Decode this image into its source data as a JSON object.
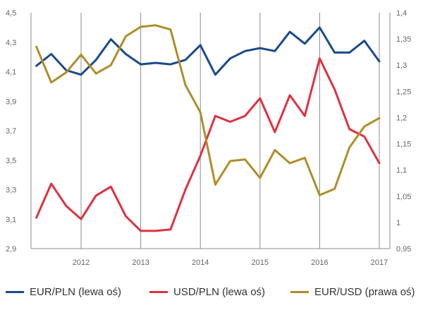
{
  "chart_data": {
    "type": "line",
    "x_ticks": [
      "2012",
      "2013",
      "2014",
      "2015",
      "2016",
      "2017"
    ],
    "y_left": {
      "ticks": [
        "4,5",
        "4,3",
        "4,1",
        "3,9",
        "3,7",
        "3,5",
        "3,3",
        "3,1",
        "2,9"
      ],
      "min": 2.9,
      "max": 4.5
    },
    "y_right": {
      "ticks": [
        "1,4",
        "1,35",
        "1,3",
        "1,25",
        "1,2",
        "1,15",
        "1,1",
        "1,05",
        "1",
        "0,95"
      ],
      "min": 0.95,
      "max": 1.4
    },
    "x": [
      2011.25,
      2011.5,
      2011.75,
      2012.0,
      2012.25,
      2012.5,
      2012.75,
      2013.0,
      2013.25,
      2013.5,
      2013.75,
      2014.0,
      2014.25,
      2014.5,
      2014.75,
      2015.0,
      2015.25,
      2015.5,
      2015.75,
      2016.0,
      2016.25,
      2016.5,
      2016.75,
      2017.0
    ],
    "series": [
      {
        "name": "EUR/PLN (lewa oś)",
        "axis": "left",
        "color": "#1a4a8a",
        "values": [
          4.14,
          4.22,
          4.11,
          4.08,
          4.18,
          4.32,
          4.22,
          4.15,
          4.16,
          4.15,
          4.18,
          4.28,
          4.08,
          4.19,
          4.24,
          4.26,
          4.24,
          4.37,
          4.29,
          4.4,
          4.23,
          4.23,
          4.31,
          4.17
        ]
      },
      {
        "name": "USD/PLN (lewa oś)",
        "axis": "left",
        "color": "#e03040",
        "values": [
          3.11,
          3.34,
          3.19,
          3.1,
          3.26,
          3.32,
          3.12,
          3.02,
          3.02,
          3.03,
          3.3,
          3.53,
          3.8,
          3.76,
          3.8,
          3.92,
          3.69,
          3.94,
          3.8,
          4.19,
          3.98,
          3.71,
          3.66,
          3.48
        ]
      },
      {
        "name": "EUR/USD (prawa oś)",
        "axis": "right",
        "color": "#b08d2a",
        "values": [
          1.335,
          1.267,
          1.286,
          1.32,
          1.284,
          1.3,
          1.355,
          1.373,
          1.376,
          1.368,
          1.262,
          1.21,
          1.072,
          1.117,
          1.12,
          1.085,
          1.138,
          1.113,
          1.123,
          1.052,
          1.064,
          1.143,
          1.183,
          1.199
        ]
      }
    ],
    "grid": "vertical",
    "legend": "bottom"
  }
}
